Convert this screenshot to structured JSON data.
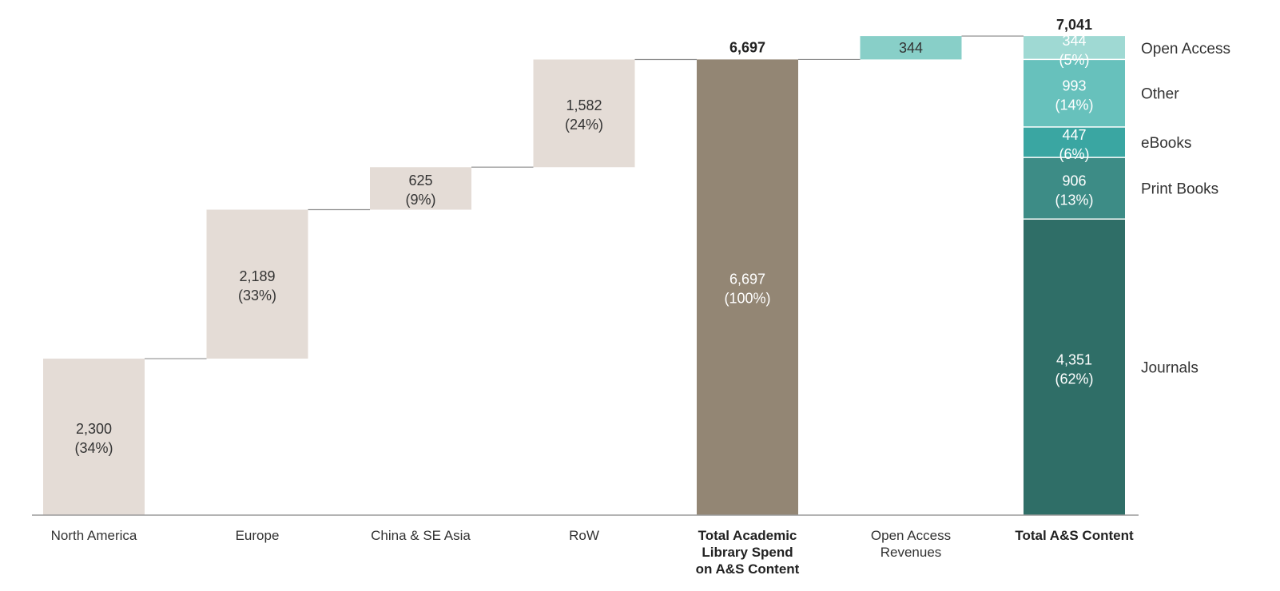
{
  "chart_data": {
    "type": "bar",
    "subtype": "waterfall",
    "title": "",
    "xlabel": "",
    "ylabel": "",
    "ylim": [
      0,
      7400
    ],
    "grid": false,
    "colors": {
      "region": "#e4dcd6",
      "total": "#938674",
      "open_access_revenue": "#88cfc8",
      "connector": "#8f8f8f",
      "axis": "#9a9a9a",
      "dark_text": "#333333",
      "light_text": "#ffffff"
    },
    "categories": [
      {
        "label": "North America",
        "bold": false
      },
      {
        "label": "Europe",
        "bold": false
      },
      {
        "label": "China & SE Asia",
        "bold": false
      },
      {
        "label": "RoW",
        "bold": false
      },
      {
        "label": "Total Academic Library Spend on A&S Content",
        "lines": [
          "Total Academic",
          "Library Spend",
          "on A&S Content"
        ],
        "bold": true
      },
      {
        "label": "Open Access Revenues",
        "lines": [
          "Open Access",
          "Revenues"
        ],
        "bold": false
      },
      {
        "label": "Total A&S Content",
        "bold": true
      }
    ],
    "steps": [
      {
        "category": "North America",
        "value": 2300,
        "value_label": "2,300",
        "pct_label": "(34%)",
        "kind": "region"
      },
      {
        "category": "Europe",
        "value": 2189,
        "value_label": "2,189",
        "pct_label": "(33%)",
        "kind": "region"
      },
      {
        "category": "China & SE Asia",
        "value": 625,
        "value_label": "625",
        "pct_label": "(9%)",
        "kind": "region"
      },
      {
        "category": "RoW",
        "value": 1582,
        "value_label": "1,582",
        "pct_label": "(24%)",
        "kind": "region"
      },
      {
        "category": "Total Academic Library Spend on A&S Content",
        "value": 6697,
        "value_label": "6,697",
        "pct_label": "(100%)",
        "total_label": "6,697",
        "kind": "total"
      },
      {
        "category": "Open Access Revenues",
        "value": 344,
        "value_label": "344",
        "kind": "increment"
      }
    ],
    "stacked_total": {
      "category": "Total A&S Content",
      "total": 7041,
      "total_label": "7,041",
      "segments": [
        {
          "name": "Journals",
          "value": 4351,
          "value_label": "4,351",
          "pct_label": "(62%)",
          "color": "#2f6e67"
        },
        {
          "name": "Print Books",
          "value": 906,
          "value_label": "906",
          "pct_label": "(13%)",
          "color": "#3d8c86"
        },
        {
          "name": "eBooks",
          "value": 447,
          "value_label": "447",
          "pct_label": "(6%)",
          "color": "#3aa6a2"
        },
        {
          "name": "Other",
          "value": 993,
          "value_label": "993",
          "pct_label": "(14%)",
          "color": "#67c1bc"
        },
        {
          "name": "Open Access",
          "value": 344,
          "value_label": "344",
          "pct_label": "(5%)",
          "color": "#9fd9d3"
        }
      ]
    }
  }
}
